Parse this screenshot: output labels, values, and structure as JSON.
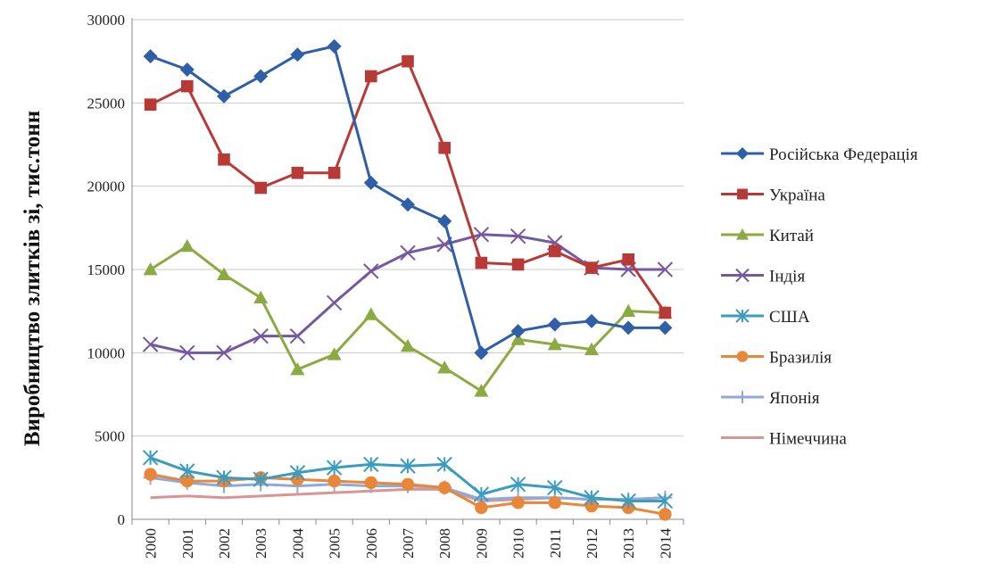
{
  "chart_data": {
    "type": "line",
    "title": "",
    "xlabel": "",
    "ylabel": "Виробництво злитків зі, тис.тонн",
    "ylim": [
      0,
      30000
    ],
    "yticks": [
      0,
      5000,
      10000,
      15000,
      20000,
      25000,
      30000
    ],
    "grid": true,
    "legend_position": "right",
    "x": [
      "2000",
      "2001",
      "2002",
      "2003",
      "2004",
      "2005",
      "2006",
      "2007",
      "2008",
      "2009",
      "2010",
      "2011",
      "2012",
      "2013",
      "2014"
    ],
    "series": [
      {
        "name": "Російська Федерація",
        "color": "#2f5fa7",
        "marker": "diamond",
        "values": [
          27800,
          27000,
          25400,
          26600,
          27900,
          28400,
          20200,
          18900,
          17900,
          10000,
          11300,
          11700,
          11900,
          11500,
          11500
        ]
      },
      {
        "name": "Україна",
        "color": "#b83a36",
        "marker": "square",
        "values": [
          24900,
          26000,
          21600,
          19900,
          20800,
          20800,
          26600,
          27500,
          22300,
          15400,
          15300,
          16100,
          15100,
          15600,
          12400
        ]
      },
      {
        "name": "Китай",
        "color": "#8caa42",
        "marker": "triangle",
        "values": [
          15000,
          16400,
          14700,
          13300,
          9000,
          9900,
          12300,
          10400,
          9100,
          7700,
          10800,
          10500,
          10200,
          12500,
          12400
        ]
      },
      {
        "name": "Індія",
        "color": "#7558a0",
        "marker": "x",
        "values": [
          10500,
          10000,
          10000,
          11000,
          11000,
          13000,
          14900,
          16000,
          16500,
          17100,
          17000,
          16600,
          15100,
          15000,
          15000
        ]
      },
      {
        "name": "США",
        "color": "#3a9cc0",
        "marker": "star",
        "values": [
          3700,
          2900,
          2500,
          2400,
          2800,
          3100,
          3300,
          3200,
          3300,
          1500,
          2100,
          1900,
          1300,
          1100,
          1100
        ]
      },
      {
        "name": "Бразилія",
        "color": "#e8873a",
        "marker": "circle",
        "values": [
          2700,
          2300,
          2300,
          2500,
          2400,
          2300,
          2200,
          2100,
          1900,
          700,
          1000,
          1000,
          800,
          700,
          300
        ]
      },
      {
        "name": "Японія",
        "color": "#8eaadb",
        "marker": "plus",
        "values": [
          2500,
          2200,
          2000,
          2100,
          2000,
          2100,
          2000,
          2000,
          1900,
          1200,
          1300,
          1300,
          1200,
          1200,
          1300
        ]
      },
      {
        "name": "Німеччина",
        "color": "#d99594",
        "marker": "none",
        "values": [
          1300,
          1400,
          1300,
          1400,
          1500,
          1600,
          1700,
          1800,
          1800,
          1100,
          1200,
          1300,
          1200,
          1200,
          1300
        ]
      }
    ]
  }
}
